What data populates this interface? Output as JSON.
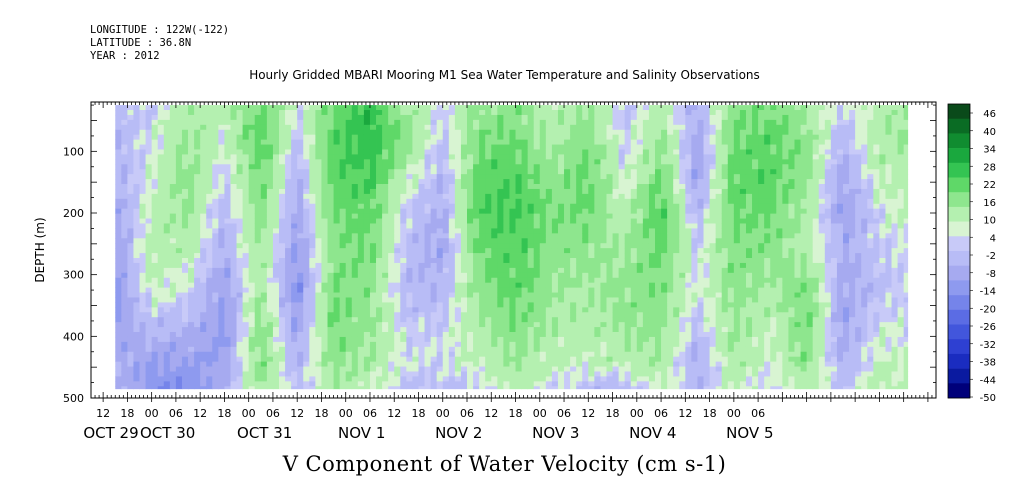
{
  "header": {
    "longitude": "LONGITUDE : 122W(-122)",
    "latitude": "LATITUDE : 36.8N",
    "year": "YEAR : 2012"
  },
  "chart_data": {
    "type": "heatmap",
    "title": "Hourly Gridded MBARI Mooring M1 Sea Water Temperature and Salinity Observations",
    "subtitle": "V Component of Water Velocity (cm s-1)",
    "ylabel": "DEPTH (m)",
    "xlabel": "",
    "ylim": [
      500,
      20
    ],
    "y_ticks": [
      100,
      200,
      300,
      400,
      500
    ],
    "x_hour_ticks": [
      "12",
      "18",
      "00",
      "06",
      "12",
      "18",
      "00",
      "06",
      "12",
      "18",
      "00",
      "06",
      "12",
      "18",
      "00",
      "06",
      "12",
      "18",
      "00",
      "06",
      "12",
      "18",
      "00",
      "06",
      "12",
      "18",
      "00",
      "06"
    ],
    "x_hours_start": 12,
    "date_labels": [
      "OCT 29",
      "OCT 30",
      "OCT 31",
      "NOV  1",
      "NOV  2",
      "NOV  3",
      "NOV  4",
      "NOV  5"
    ],
    "date_label_start_hour": 0,
    "data_time_range_hours": [
      15,
      211
    ],
    "data_depth_range": [
      25,
      485
    ],
    "colorbar_levels": [
      46,
      40,
      34,
      28,
      22,
      16,
      10,
      4,
      -2,
      -8,
      -14,
      -20,
      -26,
      -32,
      -38,
      -44,
      -50
    ],
    "colorbar_label_mode": "mixed",
    "colors": {
      "dark_green": "#0a4a1a",
      "mid_green": "#18b83e",
      "light_green": "#90ee98",
      "pale_green": "#c8f4c0",
      "pale_blue": "#c2c6f8",
      "lavender": "#a6aaf0",
      "blue": "#3c50d8",
      "navy": "#00007a"
    },
    "columns": [
      {
        "t": 15,
        "profile": [
          -6,
          -8,
          -10,
          -12,
          -14,
          -16,
          -14,
          -10,
          -6
        ]
      },
      {
        "t": 24,
        "profile": [
          -4,
          -2,
          0,
          2,
          4,
          2,
          -6,
          -14,
          -18
        ]
      },
      {
        "t": 33,
        "profile": [
          6,
          8,
          10,
          8,
          4,
          -2,
          -8,
          -14,
          -18
        ]
      },
      {
        "t": 42,
        "profile": [
          2,
          0,
          -4,
          -8,
          -10,
          -14,
          -16,
          -14,
          -10
        ]
      },
      {
        "t": 51,
        "profile": [
          16,
          18,
          14,
          10,
          8,
          6,
          10,
          12,
          8
        ]
      },
      {
        "t": 60,
        "profile": [
          -2,
          -6,
          -10,
          -12,
          -16,
          -18,
          -14,
          -10,
          -6
        ]
      },
      {
        "t": 69,
        "profile": [
          14,
          18,
          16,
          14,
          10,
          12,
          14,
          10,
          6
        ]
      },
      {
        "t": 78,
        "profile": [
          22,
          24,
          20,
          16,
          14,
          10,
          8,
          6,
          2
        ]
      },
      {
        "t": 87,
        "profile": [
          6,
          10,
          2,
          -4,
          -6,
          -8,
          -4,
          -2,
          -6
        ]
      },
      {
        "t": 96,
        "profile": [
          -2,
          -6,
          -8,
          -10,
          -12,
          -8,
          -4,
          -2,
          -6
        ]
      },
      {
        "t": 105,
        "profile": [
          8,
          12,
          16,
          18,
          14,
          10,
          6,
          2,
          -4
        ]
      },
      {
        "t": 114,
        "profile": [
          10,
          14,
          18,
          20,
          18,
          16,
          12,
          8,
          4
        ]
      },
      {
        "t": 123,
        "profile": [
          2,
          4,
          8,
          12,
          10,
          8,
          6,
          2,
          -2
        ]
      },
      {
        "t": 132,
        "profile": [
          8,
          12,
          16,
          14,
          10,
          6,
          4,
          2,
          -6
        ]
      },
      {
        "t": 141,
        "profile": [
          -6,
          -4,
          -2,
          2,
          6,
          10,
          8,
          4,
          -8
        ]
      },
      {
        "t": 150,
        "profile": [
          4,
          8,
          14,
          18,
          16,
          12,
          10,
          6,
          2
        ]
      },
      {
        "t": 159,
        "profile": [
          -10,
          -12,
          -14,
          -8,
          -4,
          -2,
          -6,
          -10,
          -8
        ]
      },
      {
        "t": 168,
        "profile": [
          10,
          14,
          16,
          14,
          12,
          10,
          8,
          6,
          2
        ]
      },
      {
        "t": 177,
        "profile": [
          12,
          16,
          18,
          14,
          10,
          6,
          2,
          0,
          -4
        ]
      },
      {
        "t": 186,
        "profile": [
          6,
          10,
          8,
          6,
          4,
          12,
          14,
          10,
          6
        ]
      },
      {
        "t": 195,
        "profile": [
          -4,
          -8,
          -12,
          -14,
          -10,
          -12,
          -14,
          -10,
          -6
        ]
      },
      {
        "t": 204,
        "profile": [
          4,
          6,
          2,
          -2,
          -4,
          -6,
          -2,
          2,
          4
        ]
      },
      {
        "t": 211,
        "profile": [
          6,
          8,
          4,
          2,
          -2,
          -4,
          -2,
          0,
          2
        ]
      }
    ],
    "profile_depths": [
      25,
      80,
      140,
      200,
      260,
      320,
      380,
      440,
      485
    ]
  }
}
